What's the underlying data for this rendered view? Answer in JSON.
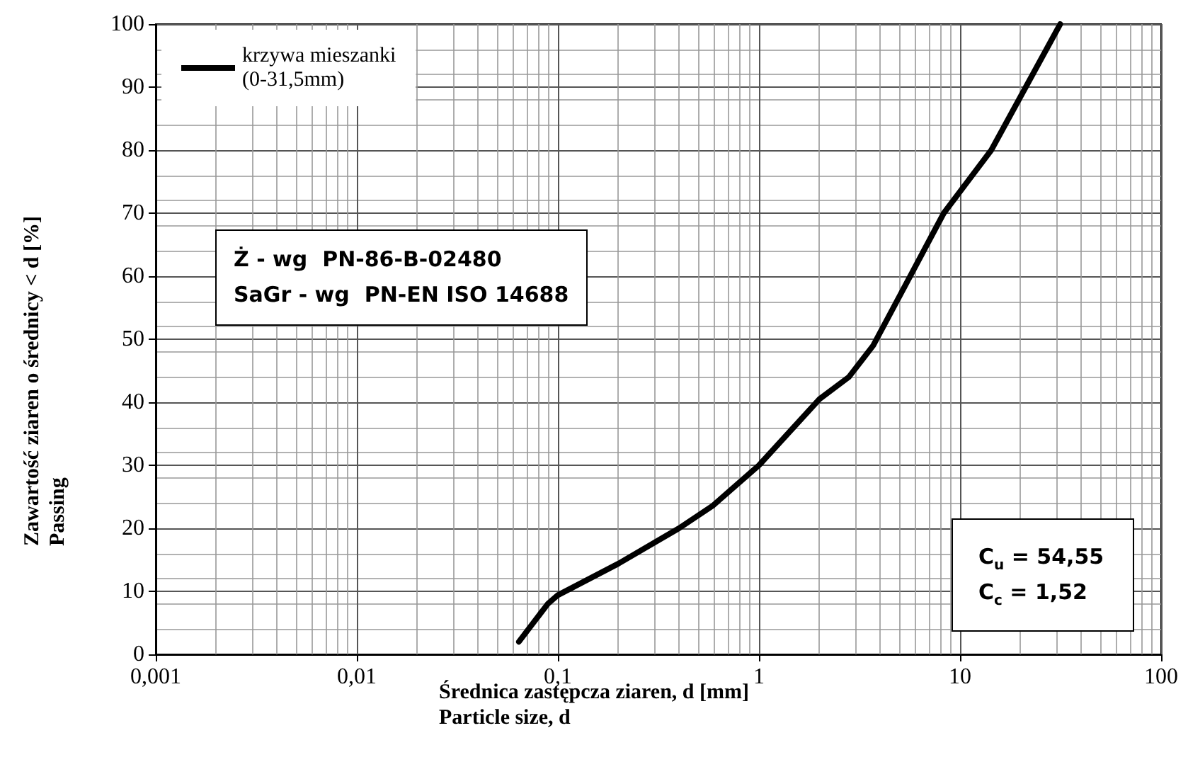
{
  "chart_data": {
    "type": "line",
    "xlabel": "Średnica zastępcza ziaren, d [mm]\nParticle size, d",
    "ylabel": "Zawartość ziaren o średnicy < d [%]\nPassing",
    "x": [
      0.064,
      0.089,
      0.1,
      0.2,
      0.4,
      0.59,
      1,
      2,
      2.8,
      3.7,
      8.3,
      14.3,
      31.5
    ],
    "series": [
      {
        "name": "krzywa mieszanki\n(0-31,5mm)",
        "color": "#000000",
        "values": [
          2,
          8,
          9.4,
          14.4,
          20,
          23.6,
          30,
          40.5,
          44,
          49,
          70,
          80,
          100
        ]
      }
    ],
    "log": "x",
    "xlim": [
      0.001,
      100
    ],
    "xticks": [
      {
        "value": 0.001,
        "label": "0,001"
      },
      {
        "value": 0.01,
        "label": "0,01"
      },
      {
        "value": 0.1,
        "label": "0,1"
      },
      1,
      10,
      100
    ],
    "ylim": [
      0,
      100
    ],
    "yticks": [
      0,
      10,
      20,
      30,
      40,
      50,
      60,
      70,
      80,
      90,
      100
    ],
    "grid": true,
    "legend": "top left",
    "marker": "none",
    "line_style": "solid",
    "annotations": [
      "Ż - wg  PN-86-B-02480\nSaGr - wg  PN-EN ISO 14688",
      "C$_{u}$ = 54,55\nC$_{c}$ = 1,52"
    ]
  }
}
